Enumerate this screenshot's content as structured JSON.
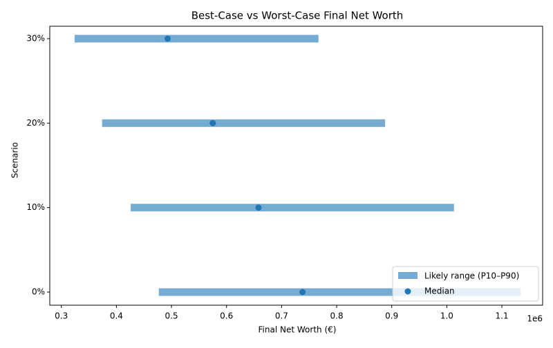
{
  "chart_data": {
    "type": "range",
    "title": "Best-Case vs Worst-Case Final Net Worth",
    "x_label": "Final Net Worth (€)",
    "y_label": "Scenario",
    "x_offset_label": "1e6",
    "categories": [
      "0%",
      "10%",
      "20%",
      "30%"
    ],
    "series": [
      {
        "name": "Likely range (P10–P90)",
        "color": "#75acd4",
        "low": [
          0.477,
          0.426,
          0.374,
          0.324
        ],
        "high": [
          1.134,
          1.013,
          0.888,
          0.767
        ]
      },
      {
        "name": "Median",
        "color": "#1f77b4",
        "values": [
          0.738,
          0.658,
          0.575,
          0.493
        ]
      }
    ],
    "xlim": [
      0.279,
      1.174
    ],
    "xticks": [
      0.3,
      0.4,
      0.5,
      0.6,
      0.7,
      0.8,
      0.9,
      {
        "value": 1,
        "label": "1.0"
      },
      1.1
    ],
    "legend": "lower right"
  }
}
